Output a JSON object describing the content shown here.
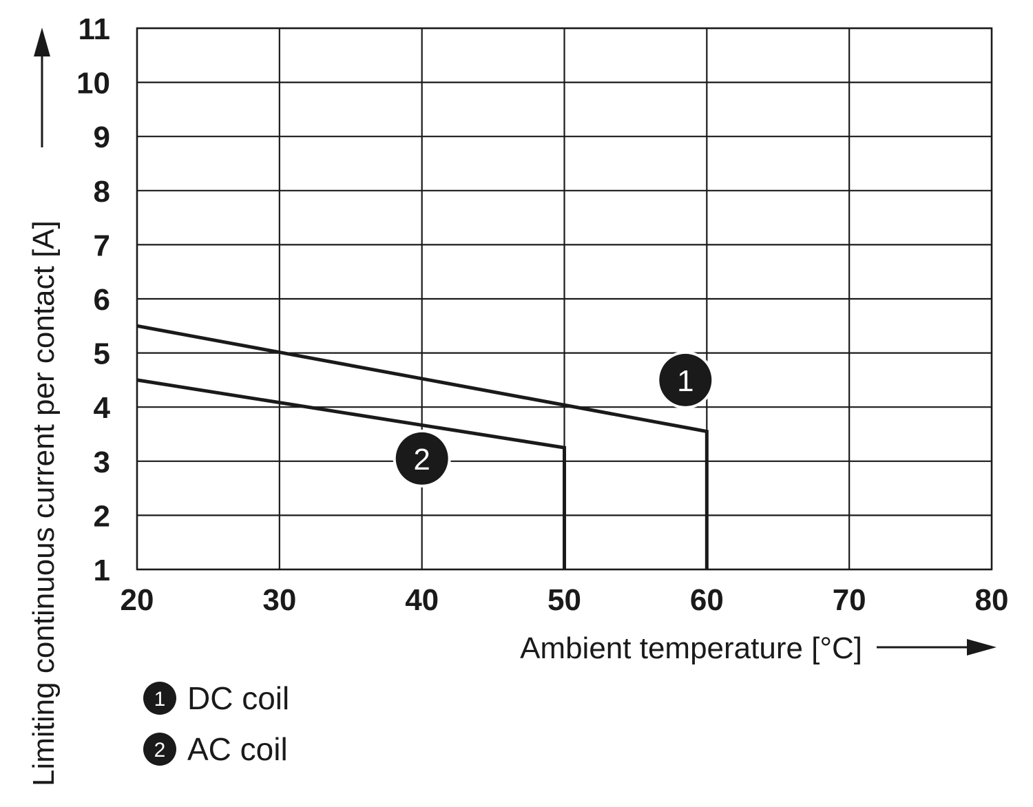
{
  "chart_data": {
    "type": "line",
    "xlabel": "Ambient temperature [°C]",
    "ylabel": "Limiting continuous current per contact [A]",
    "xlim": [
      20,
      80
    ],
    "ylim": [
      1,
      11
    ],
    "x_ticks": [
      "20",
      "30",
      "40",
      "50",
      "60",
      "70",
      "80"
    ],
    "y_ticks": [
      "1",
      "2",
      "3",
      "4",
      "5",
      "6",
      "7",
      "8",
      "9",
      "10",
      "11"
    ],
    "grid": true,
    "legend_position": "bottom-left",
    "series": [
      {
        "marker": "1",
        "name": "DC coil",
        "x": [
          20,
          60,
          60
        ],
        "y": [
          5.5,
          3.55,
          1.0
        ],
        "callout": {
          "x": 58.5,
          "y": 4.5
        }
      },
      {
        "marker": "2",
        "name": "AC coil",
        "x": [
          20,
          50,
          50
        ],
        "y": [
          4.5,
          3.25,
          1.0
        ],
        "callout": {
          "x": 40,
          "y": 3.05
        }
      }
    ]
  },
  "colors": {
    "line": "#1a1a1a",
    "grid": "#1a1a1a",
    "background": "#ffffff"
  }
}
